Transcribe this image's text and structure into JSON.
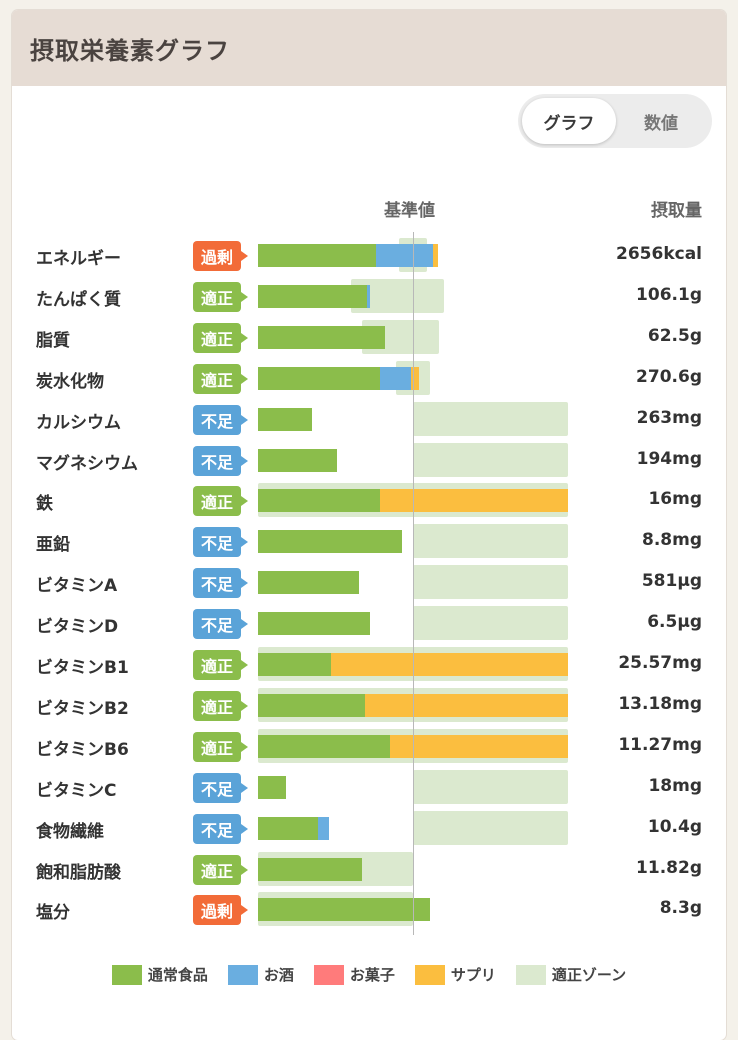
{
  "header": {
    "title": "摂取栄養素グラフ"
  },
  "toggle": {
    "graph_label": "グラフ",
    "value_label": "数値"
  },
  "columns": {
    "reference": "基準値",
    "intake": "摂取量"
  },
  "colors": {
    "food": "#8bbd4b",
    "alcohol": "#6aaee0",
    "snack": "#ff7b7b",
    "supplement": "#fbbe3f",
    "zone": "#dbe9cf",
    "excess": "#f26b38",
    "ok": "#8bbd4b",
    "short": "#5aa3d8"
  },
  "badges": {
    "excess": "過剰",
    "ok": "適正",
    "short": "不足"
  },
  "chart_data": {
    "type": "bar",
    "stacked": true,
    "x_unit": "percent_of_reference",
    "reference_line_pct": 100,
    "xlim": [
      0,
      200
    ],
    "series_names": [
      "通常食品",
      "お酒",
      "お菓子",
      "サプリ"
    ],
    "rows": [
      {
        "name": "エネルギー",
        "status": "excess",
        "value": "2656kcal",
        "food": 76,
        "alcohol": 37,
        "snack": 0,
        "supp": 3,
        "zone": [
          91,
          109
        ]
      },
      {
        "name": "たんぱく質",
        "status": "ok",
        "value": "106.1g",
        "food": 70,
        "alcohol": 2,
        "snack": 0,
        "supp": 0,
        "zone": [
          60,
          120
        ]
      },
      {
        "name": "脂質",
        "status": "ok",
        "value": "62.5g",
        "food": 82,
        "alcohol": 0,
        "snack": 0,
        "supp": 0,
        "zone": [
          67,
          117
        ]
      },
      {
        "name": "炭水化物",
        "status": "ok",
        "value": "270.6g",
        "food": 79,
        "alcohol": 20,
        "snack": 0,
        "supp": 5,
        "zone": [
          89,
          111
        ]
      },
      {
        "name": "カルシウム",
        "status": "short",
        "value": "263mg",
        "food": 35,
        "alcohol": 0,
        "snack": 0,
        "supp": 0,
        "zone": [
          100,
          200
        ]
      },
      {
        "name": "マグネシウム",
        "status": "short",
        "value": "194mg",
        "food": 51,
        "alcohol": 0,
        "snack": 0,
        "supp": 0,
        "zone": [
          100,
          200
        ]
      },
      {
        "name": "鉄",
        "status": "ok",
        "value": "16mg",
        "food": 79,
        "alcohol": 0,
        "snack": 0,
        "supp": 121,
        "zone": [
          0,
          200
        ]
      },
      {
        "name": "亜鉛",
        "status": "short",
        "value": "8.8mg",
        "food": 93,
        "alcohol": 0,
        "snack": 0,
        "supp": 0,
        "zone": [
          100,
          200
        ]
      },
      {
        "name": "ビタミンA",
        "status": "short",
        "value": "581μg",
        "food": 65,
        "alcohol": 0,
        "snack": 0,
        "supp": 0,
        "zone": [
          100,
          200
        ]
      },
      {
        "name": "ビタミンD",
        "status": "short",
        "value": "6.5μg",
        "food": 72,
        "alcohol": 0,
        "snack": 0,
        "supp": 0,
        "zone": [
          100,
          200
        ]
      },
      {
        "name": "ビタミンB1",
        "status": "ok",
        "value": "25.57mg",
        "food": 47,
        "alcohol": 0,
        "snack": 0,
        "supp": 153,
        "zone": [
          0,
          200
        ]
      },
      {
        "name": "ビタミンB2",
        "status": "ok",
        "value": "13.18mg",
        "food": 69,
        "alcohol": 0,
        "snack": 0,
        "supp": 131,
        "zone": [
          0,
          200
        ]
      },
      {
        "name": "ビタミンB6",
        "status": "ok",
        "value": "11.27mg",
        "food": 85,
        "alcohol": 0,
        "snack": 0,
        "supp": 115,
        "zone": [
          0,
          200
        ]
      },
      {
        "name": "ビタミンC",
        "status": "short",
        "value": "18mg",
        "food": 18,
        "alcohol": 0,
        "snack": 0,
        "supp": 0,
        "zone": [
          100,
          200
        ]
      },
      {
        "name": "食物繊維",
        "status": "short",
        "value": "10.4g",
        "food": 39,
        "alcohol": 7,
        "snack": 0,
        "supp": 0,
        "zone": [
          100,
          200
        ]
      },
      {
        "name": "飽和脂肪酸",
        "status": "ok",
        "value": "11.82g",
        "food": 67,
        "alcohol": 0,
        "snack": 0,
        "supp": 0,
        "zone": [
          0,
          100
        ]
      },
      {
        "name": "塩分",
        "status": "excess",
        "value": "8.3g",
        "food": 111,
        "alcohol": 0,
        "snack": 0,
        "supp": 0,
        "zone": [
          0,
          100
        ]
      }
    ]
  },
  "legend": [
    {
      "key": "food",
      "label": "通常食品"
    },
    {
      "key": "alcohol",
      "label": "お酒"
    },
    {
      "key": "snack",
      "label": "お菓子"
    },
    {
      "key": "supplement",
      "label": "サプリ"
    },
    {
      "key": "zone",
      "label": "適正ゾーン"
    }
  ]
}
